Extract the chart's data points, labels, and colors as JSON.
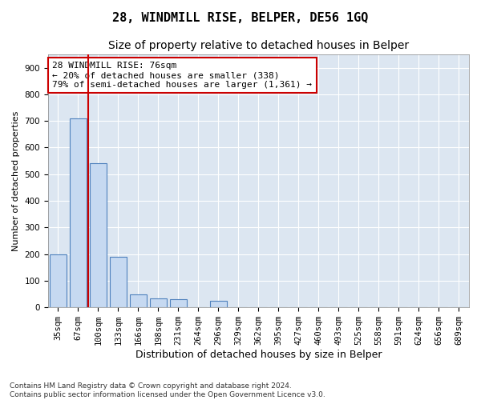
{
  "title1": "28, WINDMILL RISE, BELPER, DE56 1GQ",
  "title2": "Size of property relative to detached houses in Belper",
  "xlabel": "Distribution of detached houses by size in Belper",
  "ylabel": "Number of detached properties",
  "bar_labels": [
    "35sqm",
    "67sqm",
    "100sqm",
    "133sqm",
    "166sqm",
    "198sqm",
    "231sqm",
    "264sqm",
    "296sqm",
    "329sqm",
    "362sqm",
    "395sqm",
    "427sqm",
    "460sqm",
    "493sqm",
    "525sqm",
    "558sqm",
    "591sqm",
    "624sqm",
    "656sqm",
    "689sqm"
  ],
  "bar_values": [
    200,
    710,
    540,
    190,
    50,
    35,
    30,
    0,
    25,
    0,
    0,
    0,
    0,
    0,
    0,
    0,
    0,
    0,
    0,
    0,
    0
  ],
  "bar_color": "#c6d9f1",
  "bar_edge_color": "#4f81bd",
  "vline_color": "#cc0000",
  "vline_x": 1.5,
  "annotation_text": "28 WINDMILL RISE: 76sqm\n← 20% of detached houses are smaller (338)\n79% of semi-detached houses are larger (1,361) →",
  "annotation_box_facecolor": "#ffffff",
  "annotation_box_edgecolor": "#cc0000",
  "ylim": [
    0,
    950
  ],
  "yticks": [
    0,
    100,
    200,
    300,
    400,
    500,
    600,
    700,
    800,
    900
  ],
  "bg_color": "#ffffff",
  "plot_bg_color": "#dce6f1",
  "title1_fontsize": 11,
  "title2_fontsize": 10,
  "xlabel_fontsize": 9,
  "ylabel_fontsize": 8,
  "tick_fontsize": 7.5,
  "annotation_fontsize": 8,
  "footer": "Contains HM Land Registry data © Crown copyright and database right 2024.\nContains public sector information licensed under the Open Government Licence v3.0.",
  "footer_fontsize": 6.5
}
